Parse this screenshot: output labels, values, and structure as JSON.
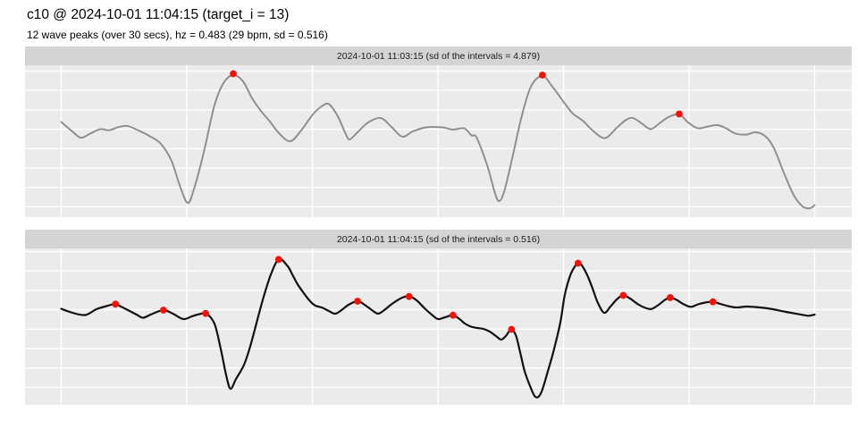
{
  "header": {
    "title": "c10 @ 2024-10-01 11:04:15 (target_i = 13)",
    "subtitle": "12 wave peaks (over 30 secs), hz = 0.483 (29 bpm, sd = 0.516)"
  },
  "colors": {
    "background": "#ffffff",
    "strip_bg": "#d4d4d4",
    "panel_bg": "#ebebeb",
    "grid": "#ffffff",
    "line_top": "#8c8c8c",
    "line_bottom": "#111111",
    "peak": "#f81109",
    "text": "#000000"
  },
  "chart_data": [
    {
      "type": "line",
      "title": "2024-10-01 11:03:15 (sd of the intervals = 4.879)",
      "x_unit": "seconds",
      "x_range": [
        0,
        30
      ],
      "x_ticks": [
        0,
        5,
        10,
        15,
        20,
        25,
        30
      ],
      "x_tick_labels_visible": false,
      "y_axis_labels_visible": false,
      "y_encoding": "pixels-from-panel-top",
      "grid": true,
      "legend": "none",
      "line_color": "#8c8c8c",
      "series": [
        {
          "name": "wave-signal",
          "points": [
            [
              0,
              63.5
            ],
            [
              0.4,
              73
            ],
            [
              0.77,
              81
            ],
            [
              1.12,
              77
            ],
            [
              1.55,
              71.5
            ],
            [
              1.9,
              72.7
            ],
            [
              2.3,
              69
            ],
            [
              2.65,
              68
            ],
            [
              3.08,
              73
            ],
            [
              3.5,
              79
            ],
            [
              3.97,
              88
            ],
            [
              4.39,
              107
            ],
            [
              4.75,
              137
            ],
            [
              5.04,
              154
            ],
            [
              5.28,
              139
            ],
            [
              5.68,
              97
            ],
            [
              6.1,
              45
            ],
            [
              6.46,
              20
            ],
            [
              6.85,
              11
            ],
            [
              7.24,
              18
            ],
            [
              7.6,
              37
            ],
            [
              7.95,
              51
            ],
            [
              8.31,
              63
            ],
            [
              8.7,
              77
            ],
            [
              9.13,
              85
            ],
            [
              9.55,
              73
            ],
            [
              10.02,
              55
            ],
            [
              10.37,
              46
            ],
            [
              10.66,
              43.5
            ],
            [
              11.01,
              57
            ],
            [
              11.3,
              75
            ],
            [
              11.48,
              83
            ],
            [
              11.8,
              75
            ],
            [
              12.22,
              64
            ],
            [
              12.72,
              59
            ],
            [
              13.15,
              69
            ],
            [
              13.58,
              80
            ],
            [
              14,
              74
            ],
            [
              14.53,
              69.5
            ],
            [
              15.18,
              69.5
            ],
            [
              15.6,
              72
            ],
            [
              16.04,
              70.5
            ],
            [
              16.34,
              78.5
            ],
            [
              16.54,
              81
            ],
            [
              16.96,
              112
            ],
            [
              17.24,
              140
            ],
            [
              17.42,
              152
            ],
            [
              17.63,
              142
            ],
            [
              17.95,
              105
            ],
            [
              18.31,
              60
            ],
            [
              18.7,
              24
            ],
            [
              19.16,
              12
            ],
            [
              19.56,
              24
            ],
            [
              19.98,
              40
            ],
            [
              20.37,
              54
            ],
            [
              20.77,
              62
            ],
            [
              21.16,
              73
            ],
            [
              21.65,
              81.5
            ],
            [
              22.12,
              70
            ],
            [
              22.47,
              61.5
            ],
            [
              22.76,
              59
            ],
            [
              23.11,
              65
            ],
            [
              23.47,
              71.5
            ],
            [
              23.82,
              65
            ],
            [
              24.18,
              58
            ],
            [
              24.61,
              55
            ],
            [
              24.96,
              64
            ],
            [
              25.36,
              70.5
            ],
            [
              25.75,
              68.5
            ],
            [
              26.14,
              67
            ],
            [
              26.5,
              71
            ],
            [
              26.85,
              76.5
            ],
            [
              27.28,
              77.5
            ],
            [
              27.67,
              75
            ],
            [
              28.06,
              80
            ],
            [
              28.38,
              93
            ],
            [
              28.77,
              120
            ],
            [
              29.16,
              145
            ],
            [
              29.52,
              158
            ],
            [
              29.81,
              160
            ],
            [
              30,
              156.5
            ]
          ]
        }
      ],
      "peaks": [
        [
          6.85,
          9.5
        ],
        [
          19.16,
          11
        ],
        [
          24.61,
          54.5
        ]
      ]
    },
    {
      "type": "line",
      "title": "2024-10-01 11:04:15 (sd of the intervals = 0.516)",
      "x_unit": "seconds",
      "x_range": [
        0,
        30
      ],
      "x_ticks": [
        0,
        5,
        10,
        15,
        20,
        25,
        30
      ],
      "x_tick_labels_visible": false,
      "y_axis_labels_visible": false,
      "y_encoding": "pixels-from-panel-top",
      "grid": true,
      "legend": "none",
      "line_color": "#111111",
      "series": [
        {
          "name": "wave-signal",
          "points": [
            [
              0,
              67.5
            ],
            [
              0.4,
              71.5
            ],
            [
              0.95,
              74.5
            ],
            [
              1.4,
              68
            ],
            [
              1.8,
              64.5
            ],
            [
              2.15,
              62.5
            ],
            [
              2.55,
              67.5
            ],
            [
              3,
              74
            ],
            [
              3.26,
              77.5
            ],
            [
              3.6,
              73.5
            ],
            [
              4.07,
              69
            ],
            [
              4.45,
              73
            ],
            [
              4.86,
              79
            ],
            [
              5.2,
              76
            ],
            [
              5.5,
              73.5
            ],
            [
              5.78,
              73
            ],
            [
              6.1,
              84
            ],
            [
              6.35,
              112
            ],
            [
              6.57,
              142
            ],
            [
              6.74,
              157
            ],
            [
              6.96,
              146
            ],
            [
              7.28,
              130
            ],
            [
              7.55,
              107
            ],
            [
              8,
              60
            ],
            [
              8.35,
              29
            ],
            [
              8.67,
              12
            ],
            [
              9.02,
              20
            ],
            [
              9.2,
              29
            ],
            [
              9.41,
              40
            ],
            [
              9.66,
              50
            ],
            [
              9.91,
              59
            ],
            [
              10.12,
              64
            ],
            [
              10.37,
              66
            ],
            [
              10.66,
              70
            ],
            [
              10.91,
              73
            ],
            [
              11.16,
              69
            ],
            [
              11.44,
              63
            ],
            [
              11.8,
              59
            ],
            [
              12.08,
              63
            ],
            [
              12.37,
              69
            ],
            [
              12.62,
              73
            ],
            [
              12.86,
              69
            ],
            [
              13.22,
              61
            ],
            [
              13.58,
              55
            ],
            [
              13.86,
              53.5
            ],
            [
              14.15,
              58
            ],
            [
              14.47,
              67
            ],
            [
              14.75,
              74
            ],
            [
              15,
              79
            ],
            [
              15.28,
              77
            ],
            [
              15.6,
              74.7
            ],
            [
              15.86,
              79
            ],
            [
              16.07,
              84
            ],
            [
              16.32,
              87.5
            ],
            [
              16.57,
              89
            ],
            [
              16.81,
              90
            ],
            [
              17.06,
              93
            ],
            [
              17.31,
              98
            ],
            [
              17.52,
              102
            ],
            [
              17.7,
              98
            ],
            [
              17.92,
              90.5
            ],
            [
              18.1,
              97
            ],
            [
              18.24,
              112
            ],
            [
              18.45,
              137
            ],
            [
              18.67,
              154
            ],
            [
              18.88,
              166
            ],
            [
              19.1,
              162
            ],
            [
              19.38,
              137
            ],
            [
              19.63,
              112
            ],
            [
              19.88,
              82
            ],
            [
              20.05,
              52
            ],
            [
              20.27,
              30
            ],
            [
              20.48,
              19
            ],
            [
              20.62,
              15.5
            ],
            [
              20.8,
              22
            ],
            [
              20.98,
              32
            ],
            [
              21.16,
              45
            ],
            [
              21.37,
              61
            ],
            [
              21.62,
              72
            ],
            [
              21.87,
              65
            ],
            [
              22.12,
              57
            ],
            [
              22.37,
              52.5
            ],
            [
              22.65,
              56
            ],
            [
              22.97,
              62.5
            ],
            [
              23.26,
              66.5
            ],
            [
              23.51,
              67.7
            ],
            [
              23.79,
              63
            ],
            [
              24.04,
              57.5
            ],
            [
              24.25,
              55
            ],
            [
              24.5,
              57.5
            ],
            [
              24.79,
              62.5
            ],
            [
              25.07,
              65.3
            ],
            [
              25.36,
              62.5
            ],
            [
              25.64,
              60.5
            ],
            [
              25.96,
              59.7
            ],
            [
              26.24,
              62
            ],
            [
              26.56,
              64.5
            ],
            [
              26.88,
              66
            ],
            [
              27.28,
              65
            ],
            [
              27.63,
              65.5
            ],
            [
              27.99,
              66.5
            ],
            [
              28.34,
              68
            ],
            [
              28.77,
              70.5
            ],
            [
              29.16,
              72.5
            ],
            [
              29.52,
              74.3
            ],
            [
              29.77,
              75.3
            ],
            [
              30,
              74
            ]
          ]
        }
      ],
      "peaks": [
        [
          2.16,
          62.3
        ],
        [
          4.07,
          69
        ],
        [
          5.75,
          72.7
        ],
        [
          8.66,
          12.3
        ],
        [
          11.8,
          59
        ],
        [
          13.85,
          53.7
        ],
        [
          15.6,
          74.7
        ],
        [
          17.93,
          90.5
        ],
        [
          20.58,
          16.5
        ],
        [
          22.38,
          52.5
        ],
        [
          24.25,
          55
        ],
        [
          25.95,
          59.7
        ]
      ]
    }
  ]
}
